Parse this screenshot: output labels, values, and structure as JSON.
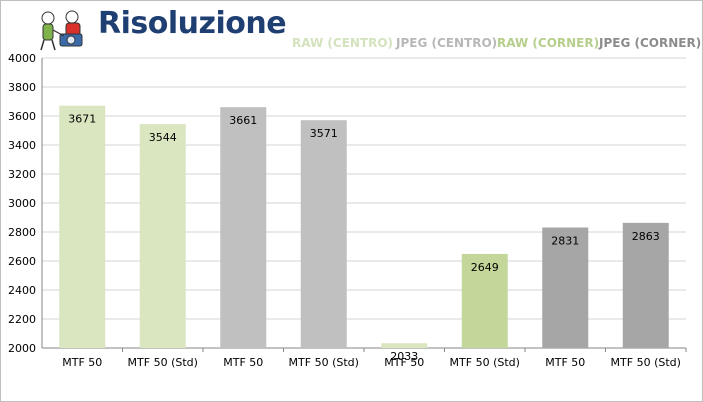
{
  "chart": {
    "title": "Risoluzione",
    "colors": {
      "title": "#1f3f73",
      "raw_centro": "#d9e6c0",
      "jpeg_centro": "#c0c0c0",
      "raw_corner": "#c4d79b",
      "jpeg_corner": "#a6a6a6",
      "legend_raw_centro": "#d3e3bd",
      "legend_jpeg_centro": "#b8b8b8",
      "legend_raw_corner": "#b7cf8c",
      "legend_jpeg_corner": "#8c8c8c"
    }
  },
  "chart_data": {
    "type": "bar",
    "title": "Risoluzione",
    "ylim": [
      2000,
      4000
    ],
    "yticks": [
      2000,
      2200,
      2400,
      2600,
      2800,
      3000,
      3200,
      3400,
      3600,
      3800,
      4000
    ],
    "grid": true,
    "legend_position": "top-right",
    "legend": [
      "RAW (CENTRO)",
      "JPEG (CENTRO)",
      "RAW (CORNER)",
      "JPEG (CORNER)"
    ],
    "categories": [
      "MTF 50",
      "MTF 50 (Std)",
      "MTF 50",
      "MTF 50 (Std)",
      "MTF 50",
      "MTF 50 (Std)",
      "MTF 50",
      "MTF 50 (Std)"
    ],
    "values": [
      3671,
      3544,
      3661,
      3571,
      2033,
      2649,
      2831,
      2863
    ],
    "bar_groups": [
      "RAW (CENTRO)",
      "RAW (CENTRO)",
      "JPEG (CENTRO)",
      "JPEG (CENTRO)",
      "RAW (CORNER)",
      "RAW (CORNER)",
      "JPEG (CORNER)",
      "JPEG (CORNER)"
    ],
    "bar_colors": [
      "#d9e6c0",
      "#d9e6c0",
      "#c0c0c0",
      "#c0c0c0",
      "#d9e6c0",
      "#c4d79b",
      "#a6a6a6",
      "#a6a6a6"
    ],
    "data_labels": [
      "3671",
      "3544",
      "3661",
      "3571",
      "2033",
      "2649",
      "2831",
      "2863"
    ]
  }
}
